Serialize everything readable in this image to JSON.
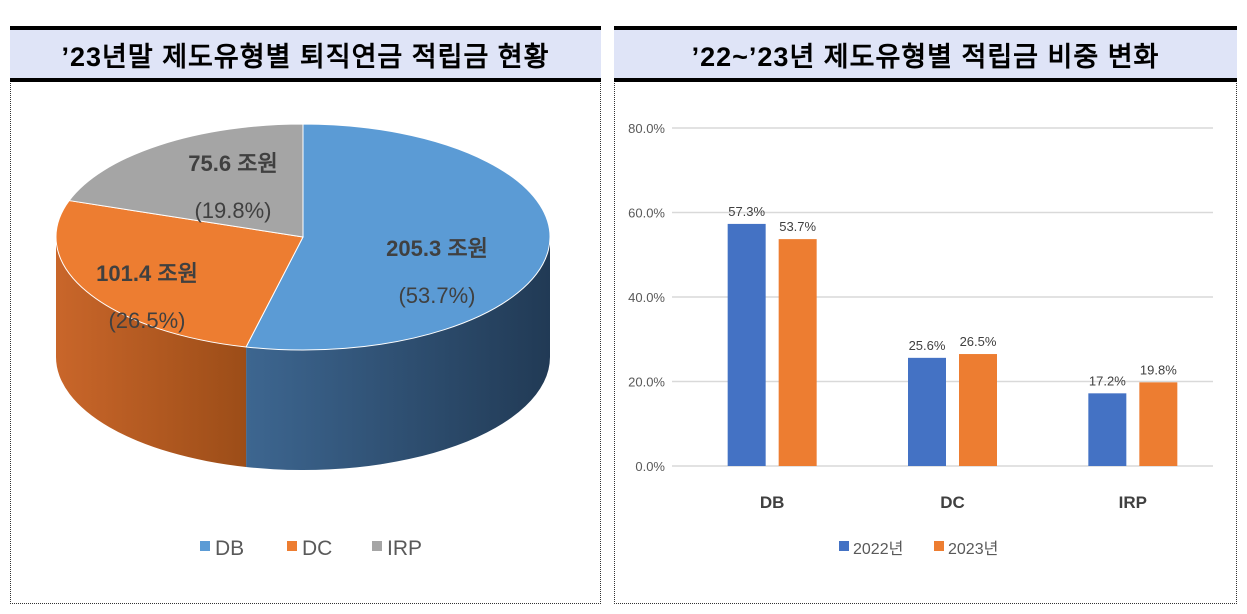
{
  "chart_data": [
    {
      "type": "pie",
      "title": "’23년말 제도유형별 퇴직연금 적립금 현황",
      "style": "3d",
      "slices": [
        {
          "name": "DB",
          "value": 205.3,
          "percent": 53.7,
          "value_label": "205.3 조원",
          "percent_label": "(53.7%)",
          "color": "#5b9bd5"
        },
        {
          "name": "DC",
          "value": 101.4,
          "percent": 26.5,
          "value_label": "101.4 조원",
          "percent_label": "(26.5%)",
          "color": "#ed7d31"
        },
        {
          "name": "IRP",
          "value": 75.6,
          "percent": 19.8,
          "value_label": "75.6 조원",
          "percent_label": "(19.8%)",
          "color": "#a5a5a5"
        }
      ],
      "legend": {
        "position": "bottom",
        "items": [
          "DB",
          "DC",
          "IRP"
        ]
      }
    },
    {
      "type": "bar",
      "title": "’22~’23년 제도유형별 적립금 비중 변화",
      "categories": [
        "DB",
        "DC",
        "IRP"
      ],
      "series": [
        {
          "name": "2022년",
          "values": [
            57.3,
            25.6,
            17.2
          ],
          "labels": [
            "57.3%",
            "25.6%",
            "17.2%"
          ],
          "color": "#4472c4"
        },
        {
          "name": "2023년",
          "values": [
            53.7,
            26.5,
            19.8
          ],
          "labels": [
            "53.7%",
            "26.5%",
            "19.8%"
          ],
          "color": "#ed7d31"
        }
      ],
      "ylim": [
        0,
        80
      ],
      "yticks": [
        "0.0%",
        "20.0%",
        "40.0%",
        "60.0%",
        "80.0%"
      ],
      "grid": true,
      "legend": {
        "position": "bottom"
      }
    }
  ]
}
